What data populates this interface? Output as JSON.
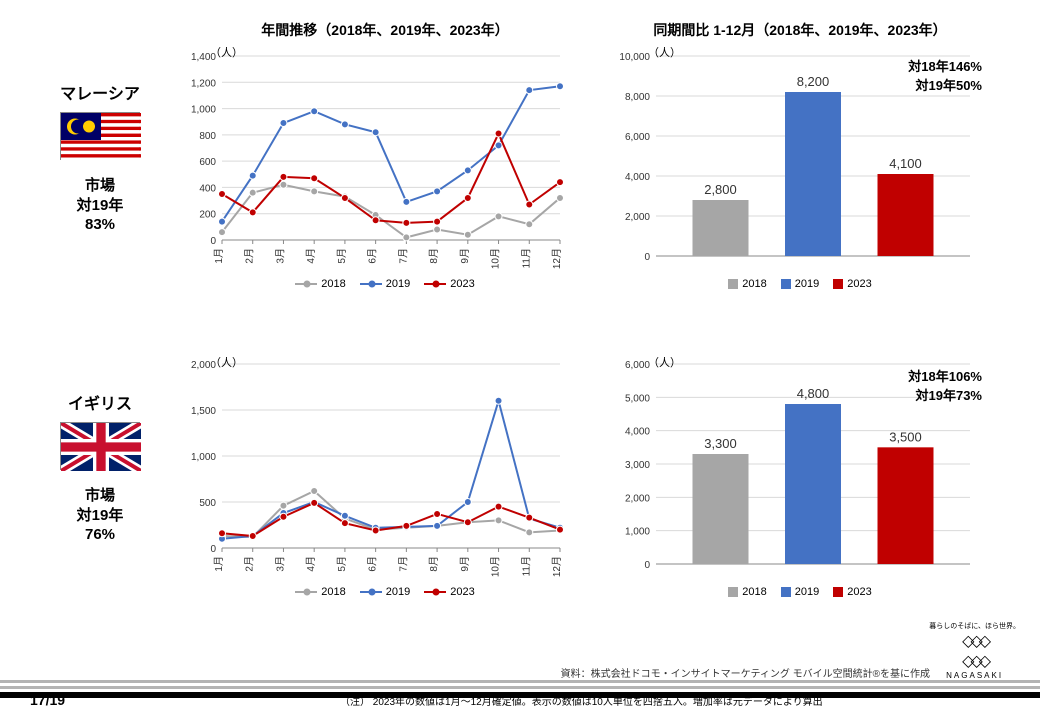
{
  "titles": {
    "line": "年間推移（2018年、2019年、2023年）",
    "bar": "同期間比 1-12月（2018年、2019年、2023年）"
  },
  "unit": "（人）",
  "months": [
    "1月",
    "2月",
    "3月",
    "4月",
    "5月",
    "6月",
    "7月",
    "8月",
    "9月",
    "10月",
    "11月",
    "12月"
  ],
  "series_names": {
    "s2018": "2018",
    "s2019": "2019",
    "s2023": "2023"
  },
  "colors": {
    "c2018": "#a6a6a6",
    "c2019": "#4472c4",
    "c2023": "#c00000",
    "grid": "#d9d9d9",
    "axis": "#888",
    "text": "#333"
  },
  "countries": [
    {
      "name": "マレーシア",
      "flag": "malaysia",
      "market": "市場\n対19年\n83%",
      "line": {
        "ylim": [
          0,
          1400
        ],
        "ystep": 200,
        "s2018": [
          60,
          360,
          420,
          370,
          330,
          190,
          20,
          80,
          40,
          180,
          120,
          320
        ],
        "s2019": [
          140,
          490,
          890,
          980,
          880,
          820,
          290,
          370,
          530,
          720,
          1140,
          1170
        ],
        "s2023": [
          350,
          210,
          480,
          470,
          320,
          150,
          130,
          140,
          320,
          810,
          270,
          440
        ]
      },
      "bar": {
        "ylim": [
          0,
          10000
        ],
        "ystep": 2000,
        "values": {
          "s2018": 2800,
          "s2019": 8200,
          "s2023": 4100
        },
        "annot": {
          "l1": "対18年146%",
          "l2": "対19年50%"
        }
      }
    },
    {
      "name": "イギリス",
      "flag": "uk",
      "market": "市場\n対19年\n76%",
      "line": {
        "ylim": [
          0,
          2000
        ],
        "ystep": 500,
        "s2018": [
          130,
          120,
          460,
          620,
          320,
          200,
          220,
          240,
          280,
          300,
          170,
          190
        ],
        "s2019": [
          100,
          130,
          380,
          500,
          350,
          220,
          230,
          240,
          500,
          1600,
          320,
          220
        ],
        "s2023": [
          160,
          130,
          340,
          490,
          270,
          190,
          240,
          370,
          280,
          450,
          330,
          200
        ]
      },
      "bar": {
        "ylim": [
          0,
          6000
        ],
        "ystep": 1000,
        "values": {
          "s2018": 3300,
          "s2019": 4800,
          "s2023": 3500
        },
        "annot": {
          "l1": "対18年106%",
          "l2": "対19年73%"
        }
      }
    }
  ],
  "source": "資料：株式会社ドコモ・インサイトマーケティング  モバイル空間統計®を基に作成",
  "page_num": "17/19",
  "note": "（注） 2023年の数値は1月～12月確定値。表示の数値は10人単位を四捨五入。増加率は元データにより算出",
  "logo_top": "暮らしのそばに、ほら世界。",
  "logo_bottom": "NAGASAKI"
}
